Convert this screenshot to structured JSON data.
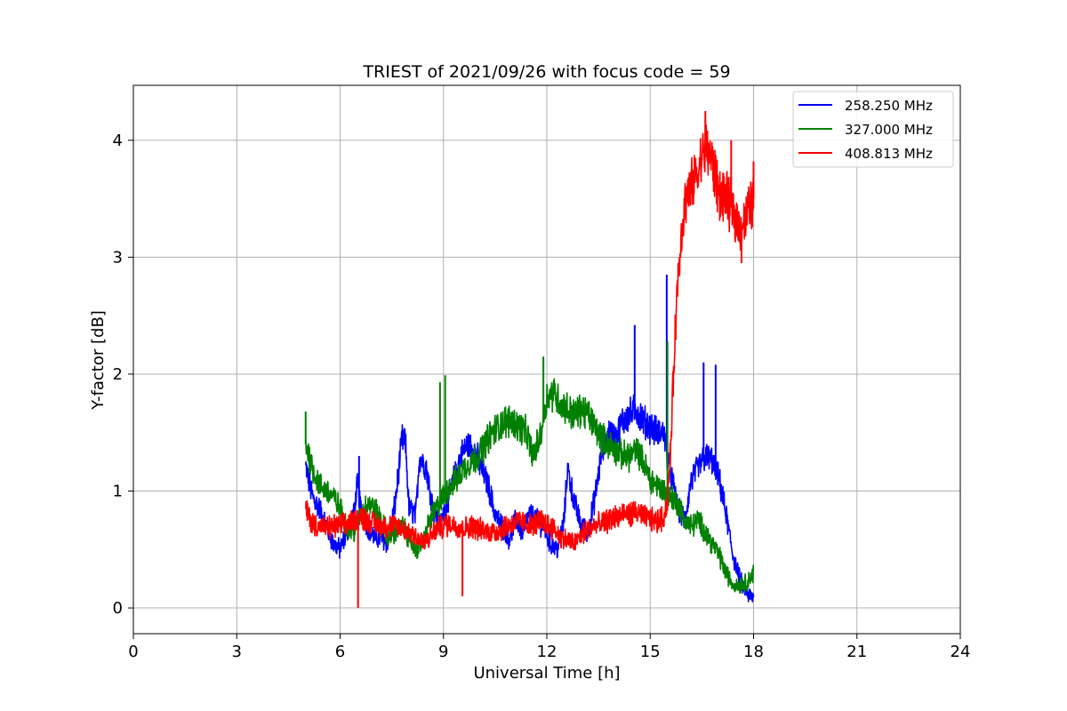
{
  "chart_data": {
    "type": "line",
    "title": "TRIEST of 2021/09/26 with focus code = 59",
    "xlabel": "Universal Time [h]",
    "ylabel": "Y-factor [dB]",
    "xlim": [
      0,
      24
    ],
    "ylim": [
      -0.22,
      4.47
    ],
    "xticks": [
      0,
      3,
      6,
      9,
      12,
      15,
      18,
      21,
      24
    ],
    "yticks": [
      0,
      1,
      2,
      3,
      4
    ],
    "grid": true,
    "legend_position": "top-right",
    "series": [
      {
        "name": "258.250 MHz",
        "color": "#0000ff",
        "x": [
          5.0,
          5.2,
          5.4,
          5.6,
          5.8,
          6.0,
          6.2,
          6.4,
          6.5,
          6.6,
          6.8,
          7.0,
          7.2,
          7.4,
          7.6,
          7.8,
          7.9,
          8.0,
          8.2,
          8.3,
          8.5,
          8.7,
          8.9,
          9.1,
          9.3,
          9.5,
          9.7,
          9.9,
          10.1,
          10.3,
          10.5,
          10.7,
          10.9,
          11.1,
          11.3,
          11.5,
          11.7,
          11.9,
          12.1,
          12.3,
          12.5,
          12.6,
          12.8,
          13.0,
          13.2,
          13.4,
          13.6,
          13.8,
          14.0,
          14.2,
          14.4,
          14.6,
          14.8,
          15.0,
          15.2,
          15.4,
          15.5,
          15.6,
          15.8,
          16.0,
          16.2,
          16.4,
          16.6,
          16.8,
          17.0,
          17.2,
          17.4,
          17.6,
          17.8,
          18.0
        ],
        "y": [
          1.2,
          0.95,
          0.85,
          0.7,
          0.55,
          0.5,
          0.65,
          0.8,
          1.05,
          0.85,
          0.7,
          0.6,
          0.6,
          0.55,
          0.9,
          1.45,
          1.4,
          0.85,
          0.8,
          1.3,
          1.2,
          0.85,
          0.7,
          0.9,
          1.1,
          1.3,
          1.4,
          1.35,
          1.2,
          1.05,
          0.8,
          0.7,
          0.6,
          0.75,
          0.65,
          0.8,
          0.75,
          0.7,
          0.55,
          0.5,
          0.75,
          1.2,
          0.9,
          0.7,
          0.65,
          0.95,
          1.35,
          1.5,
          1.45,
          1.6,
          1.65,
          1.7,
          1.6,
          1.55,
          1.5,
          1.5,
          1.3,
          1.15,
          0.85,
          0.75,
          1.1,
          1.2,
          1.3,
          1.25,
          1.1,
          0.8,
          0.45,
          0.25,
          0.12,
          0.08
        ]
      },
      {
        "name": "327.000 MHz",
        "color": "#008000",
        "x": [
          5.0,
          5.2,
          5.4,
          5.6,
          5.8,
          6.0,
          6.2,
          6.4,
          6.6,
          6.8,
          7.0,
          7.2,
          7.4,
          7.6,
          7.8,
          8.0,
          8.2,
          8.4,
          8.6,
          8.8,
          9.0,
          9.2,
          9.4,
          9.6,
          9.8,
          10.0,
          10.2,
          10.4,
          10.6,
          10.8,
          11.0,
          11.2,
          11.4,
          11.6,
          11.8,
          12.0,
          12.2,
          12.4,
          12.6,
          12.8,
          13.0,
          13.2,
          13.4,
          13.6,
          13.8,
          14.0,
          14.2,
          14.4,
          14.6,
          14.8,
          15.0,
          15.2,
          15.4,
          15.6,
          15.8,
          16.0,
          16.2,
          16.4,
          16.6,
          16.8,
          17.0,
          17.2,
          17.4,
          17.6,
          17.8,
          18.0
        ],
        "y": [
          1.4,
          1.2,
          1.05,
          1.0,
          0.95,
          0.85,
          0.7,
          0.65,
          0.8,
          0.9,
          0.85,
          0.75,
          0.6,
          0.65,
          0.7,
          0.6,
          0.5,
          0.55,
          0.75,
          0.85,
          0.95,
          1.05,
          1.1,
          1.2,
          1.25,
          1.3,
          1.4,
          1.5,
          1.55,
          1.6,
          1.6,
          1.55,
          1.5,
          1.3,
          1.45,
          1.8,
          1.85,
          1.75,
          1.7,
          1.65,
          1.7,
          1.65,
          1.55,
          1.45,
          1.4,
          1.35,
          1.3,
          1.3,
          1.35,
          1.25,
          1.1,
          1.05,
          1.0,
          0.95,
          0.9,
          0.75,
          0.7,
          0.75,
          0.65,
          0.55,
          0.45,
          0.3,
          0.2,
          0.2,
          0.22,
          0.3
        ]
      },
      {
        "name": "408.813 MHz",
        "color": "#ff0000",
        "x": [
          5.0,
          5.2,
          5.4,
          5.6,
          5.8,
          6.0,
          6.2,
          6.4,
          6.6,
          6.8,
          7.0,
          7.2,
          7.4,
          7.6,
          7.8,
          8.0,
          8.2,
          8.4,
          8.6,
          8.8,
          9.0,
          9.2,
          9.4,
          9.6,
          9.8,
          10.0,
          10.2,
          10.4,
          10.6,
          10.8,
          11.0,
          11.2,
          11.4,
          11.6,
          11.8,
          12.0,
          12.2,
          12.4,
          12.6,
          12.8,
          13.0,
          13.2,
          13.4,
          13.6,
          13.8,
          14.0,
          14.2,
          14.4,
          14.6,
          14.8,
          15.0,
          15.2,
          15.4,
          15.5,
          15.6,
          15.7,
          15.8,
          15.9,
          16.0,
          16.2,
          16.4,
          16.6,
          16.7,
          16.8,
          17.0,
          17.2,
          17.4,
          17.6,
          17.8,
          18.0
        ],
        "y": [
          0.85,
          0.72,
          0.7,
          0.68,
          0.7,
          0.7,
          0.72,
          0.75,
          0.78,
          0.75,
          0.72,
          0.7,
          0.7,
          0.7,
          0.68,
          0.65,
          0.62,
          0.55,
          0.6,
          0.68,
          0.7,
          0.72,
          0.7,
          0.68,
          0.7,
          0.68,
          0.66,
          0.65,
          0.66,
          0.7,
          0.72,
          0.74,
          0.72,
          0.7,
          0.75,
          0.72,
          0.68,
          0.6,
          0.58,
          0.55,
          0.62,
          0.68,
          0.7,
          0.72,
          0.75,
          0.78,
          0.8,
          0.8,
          0.82,
          0.78,
          0.76,
          0.74,
          0.78,
          0.9,
          1.4,
          2.2,
          2.8,
          3.2,
          3.45,
          3.6,
          3.75,
          3.95,
          3.9,
          3.8,
          3.55,
          3.5,
          3.4,
          3.25,
          3.35,
          3.5
        ]
      }
    ],
    "spikes": [
      {
        "series": 0,
        "x": 6.55,
        "y": 1.3
      },
      {
        "series": 0,
        "x": 14.55,
        "y": 2.42
      },
      {
        "series": 0,
        "x": 15.48,
        "y": 2.85
      },
      {
        "series": 0,
        "x": 16.55,
        "y": 2.1
      },
      {
        "series": 0,
        "x": 16.9,
        "y": 2.08
      },
      {
        "series": 1,
        "x": 5.0,
        "y": 1.68
      },
      {
        "series": 1,
        "x": 8.9,
        "y": 1.93
      },
      {
        "series": 1,
        "x": 9.05,
        "y": 1.99
      },
      {
        "series": 1,
        "x": 11.9,
        "y": 2.15
      },
      {
        "series": 1,
        "x": 15.5,
        "y": 2.28
      },
      {
        "series": 2,
        "x": 6.52,
        "y": 0.0
      },
      {
        "series": 2,
        "x": 9.55,
        "y": 0.1
      },
      {
        "series": 2,
        "x": 16.6,
        "y": 4.25
      },
      {
        "series": 2,
        "x": 17.35,
        "y": 4.0
      },
      {
        "series": 2,
        "x": 17.65,
        "y": 2.95
      },
      {
        "series": 2,
        "x": 18.0,
        "y": 3.82
      }
    ]
  }
}
